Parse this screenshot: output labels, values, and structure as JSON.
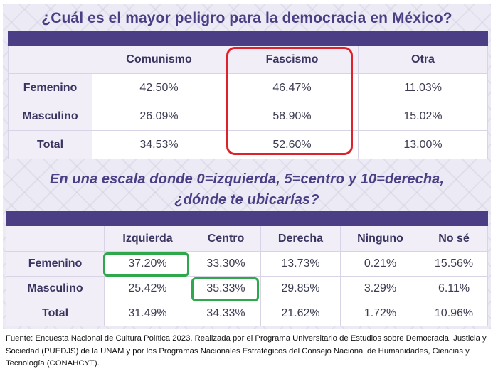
{
  "survey1": {
    "title": "¿Cuál es el mayor peligro para la democracia en México?",
    "columns": [
      "Comunismo",
      "Fascismo",
      "Otra"
    ],
    "rows": [
      {
        "label": "Femenino",
        "values": [
          "42.50%",
          "46.47%",
          "11.03%"
        ]
      },
      {
        "label": "Masculino",
        "values": [
          "26.09%",
          "58.90%",
          "15.02%"
        ]
      },
      {
        "label": "Total",
        "values": [
          "34.53%",
          "52.60%",
          "13.00%"
        ]
      }
    ]
  },
  "survey2": {
    "title_line1": "En una escala donde 0=izquierda, 5=centro y 10=derecha,",
    "title_line2": "¿dónde te ubicarías?",
    "columns": [
      "Izquierda",
      "Centro",
      "Derecha",
      "Ninguno",
      "No sé"
    ],
    "rows": [
      {
        "label": "Femenino",
        "values": [
          "37.20%",
          "33.30%",
          "13.73%",
          "0.21%",
          "15.56%"
        ]
      },
      {
        "label": "Masculino",
        "values": [
          "25.42%",
          "35.33%",
          "29.85%",
          "3.29%",
          "6.11%"
        ]
      },
      {
        "label": "Total",
        "values": [
          "31.49%",
          "34.33%",
          "21.62%",
          "1.72%",
          "10.96%"
        ]
      }
    ]
  },
  "source": "Fuente: Encuesta Nacional de Cultura Política 2023. Realizada por el Programa Universitario de Estudios sobre Democracia, Justicia y Sociedad (PUEDJS) de la UNAM y por los Programas Nacionales Estratégicos del Consejo Nacional de Humanidades, Ciencias y Tecnología  (CONAHCYT).",
  "colors": {
    "title": "#4a3f85",
    "band": "#4b3e85",
    "highlight_red": "#e0202a",
    "highlight_green": "#2ea84a"
  }
}
